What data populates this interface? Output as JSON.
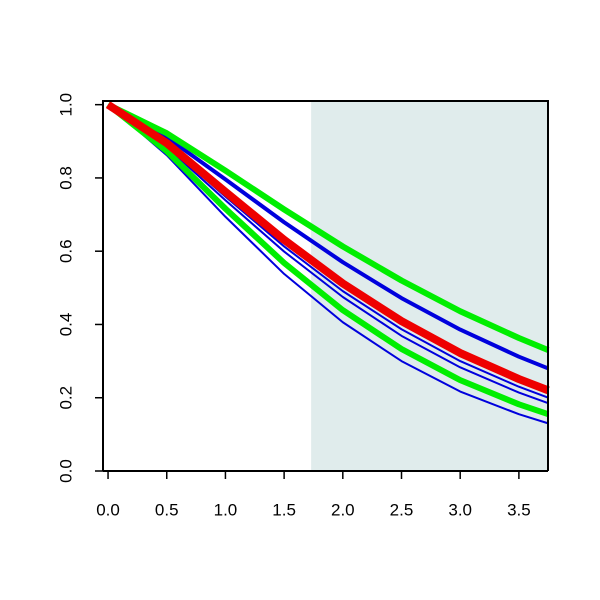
{
  "chart_data": {
    "type": "line",
    "x": [
      0,
      0.5,
      1,
      1.5,
      2,
      2.5,
      3,
      3.5,
      3.75
    ],
    "series": [
      {
        "color": "#0000dd",
        "width": 2,
        "values": [
          1,
          0.862,
          0.694,
          0.538,
          0.406,
          0.3,
          0.217,
          0.155,
          0.13
        ]
      },
      {
        "color": "#0000dd",
        "width": 2,
        "values": [
          1,
          0.884,
          0.739,
          0.599,
          0.475,
          0.369,
          0.283,
          0.214,
          0.185
        ]
      },
      {
        "color": "#0000dd",
        "width": 2,
        "values": [
          1,
          0.889,
          0.749,
          0.613,
          0.491,
          0.387,
          0.3,
          0.23,
          0.2
        ]
      },
      {
        "color": "#0000dd",
        "width": 4,
        "values": [
          1,
          0.911,
          0.796,
          0.679,
          0.57,
          0.472,
          0.386,
          0.312,
          0.28
        ]
      },
      {
        "color": "#00ee00",
        "width": 6,
        "values": [
          1,
          0.873,
          0.716,
          0.568,
          0.439,
          0.333,
          0.248,
          0.182,
          0.155
        ]
      },
      {
        "color": "#00ee00",
        "width": 6,
        "values": [
          1,
          0.922,
          0.82,
          0.714,
          0.613,
          0.52,
          0.436,
          0.363,
          0.33
        ]
      },
      {
        "color": "#ee0000",
        "width": 8,
        "values": [
          1,
          0.895,
          0.762,
          0.631,
          0.512,
          0.409,
          0.322,
          0.251,
          0.22
        ]
      }
    ],
    "shade_from": 1.73,
    "shade_color": "#e0ecec",
    "xlim": [
      -0.043,
      3.748
    ],
    "ylim": [
      0,
      1.01
    ],
    "xticks": [
      {
        "value": 0,
        "label": "0.0"
      },
      {
        "value": 0.5,
        "label": "0.5"
      },
      {
        "value": 1,
        "label": "1.0"
      },
      {
        "value": 1.5,
        "label": "1.5"
      },
      {
        "value": 2,
        "label": "2.0"
      },
      {
        "value": 2.5,
        "label": "2.5"
      },
      {
        "value": 3,
        "label": "3.0"
      },
      {
        "value": 3.5,
        "label": "3.5"
      }
    ],
    "yticks": [
      {
        "value": 0,
        "label": "0.0"
      },
      {
        "value": 0.2,
        "label": "0.2"
      },
      {
        "value": 0.4,
        "label": "0.4"
      },
      {
        "value": 0.6,
        "label": "0.6"
      },
      {
        "value": 0.8,
        "label": "0.8"
      },
      {
        "value": 1,
        "label": "1.0"
      }
    ]
  }
}
